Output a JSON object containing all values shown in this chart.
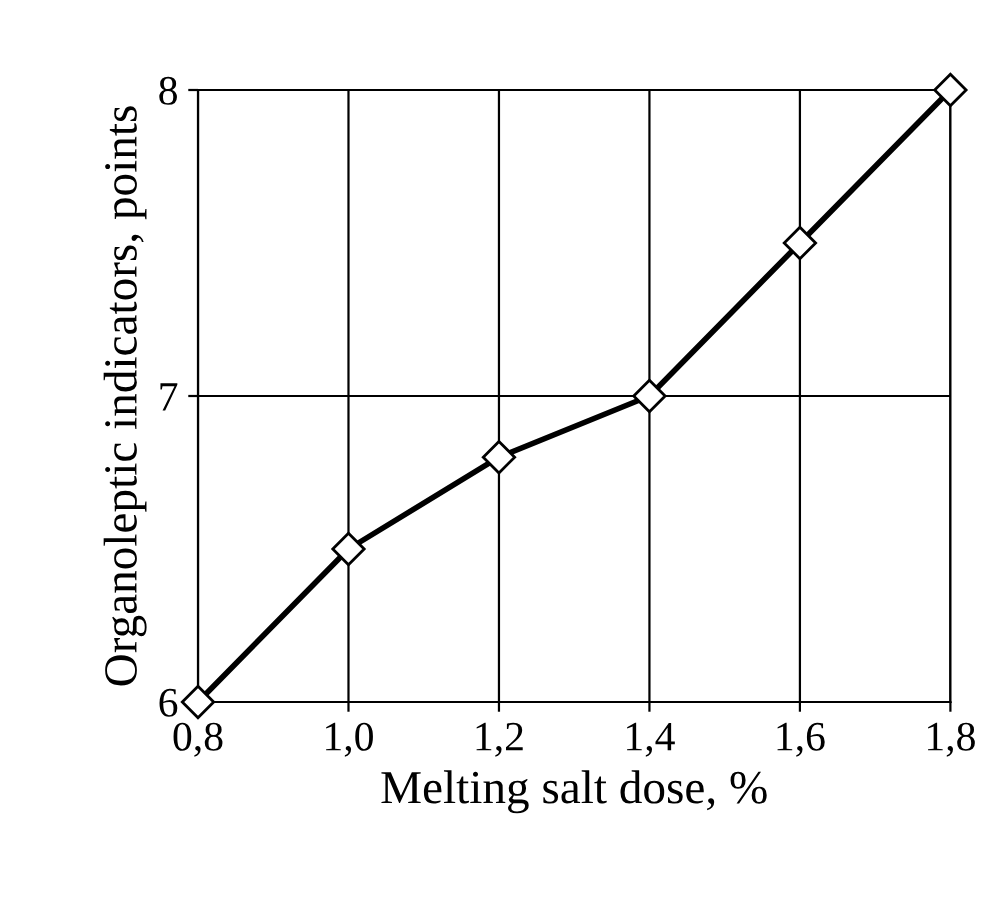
{
  "chart_data": {
    "type": "line",
    "xlabel": "Melting salt dose, %",
    "ylabel": "Organoleptic indicators, points",
    "x": [
      0.8,
      1.0,
      1.2,
      1.4,
      1.6,
      1.8
    ],
    "series": [
      {
        "color": "#000000",
        "values": [
          6,
          6.5,
          6.8,
          7.0,
          7.5,
          8.0
        ]
      }
    ],
    "xlim": [
      0.8,
      1.8
    ],
    "ylim": [
      6,
      8
    ],
    "xticks": [
      {
        "value": 0.8,
        "label": "0,8"
      },
      {
        "value": 1.0,
        "label": "1,0"
      },
      {
        "value": 1.2,
        "label": "1,2"
      },
      {
        "value": 1.4,
        "label": "1,4"
      },
      {
        "value": 1.6,
        "label": "1,6"
      },
      {
        "value": 1.8,
        "label": "1,8"
      }
    ],
    "yticks": [
      6,
      7,
      8
    ],
    "grid": true,
    "marker": "diamond",
    "line_style": "solid"
  }
}
